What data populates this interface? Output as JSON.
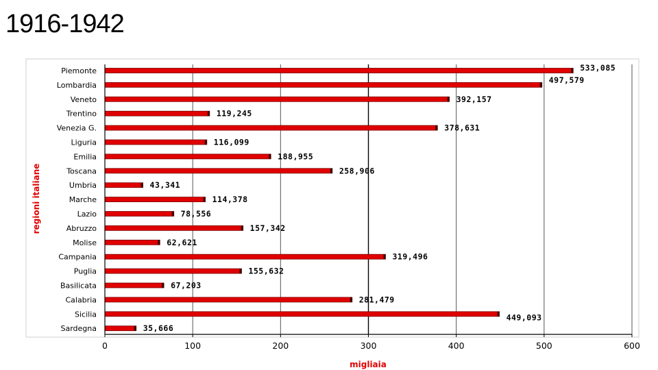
{
  "slide": {
    "title": "1916-1942"
  },
  "chart_data": {
    "type": "bar",
    "orientation": "horizontal",
    "xlabel": "migliaia",
    "ylabel": "regioni italiane",
    "xlim": [
      0,
      600
    ],
    "xticks": [
      0,
      100,
      200,
      300,
      400,
      500,
      600
    ],
    "grid": "vertical",
    "bar_color": "#e00000",
    "categories": [
      "Piemonte",
      "Lombardia",
      "Veneto",
      "Trentino",
      "Venezia G.",
      "Liguria",
      "Emilia",
      "Toscana",
      "Umbria",
      "Marche",
      "Lazio",
      "Abruzzo",
      "Molise",
      "Campania",
      "Puglia",
      "Basilicata",
      "Calabria",
      "Sicilia",
      "Sardegna"
    ],
    "values": [
      533.085,
      497.579,
      392.157,
      119.245,
      378.631,
      116.099,
      188.955,
      258.906,
      43.341,
      114.378,
      78.556,
      157.342,
      62.621,
      319.496,
      155.632,
      67.203,
      281.479,
      449.093,
      35.666
    ],
    "value_labels": [
      "533,085",
      "497,579",
      "392,157",
      "119,245",
      "378,631",
      "116,099",
      "188,955",
      "258,906",
      "43,341",
      "114,378",
      "78,556",
      "157,342",
      "62,621",
      "319,496",
      "155,632",
      "67,203",
      "281,479",
      "449,093",
      "35,666"
    ]
  }
}
